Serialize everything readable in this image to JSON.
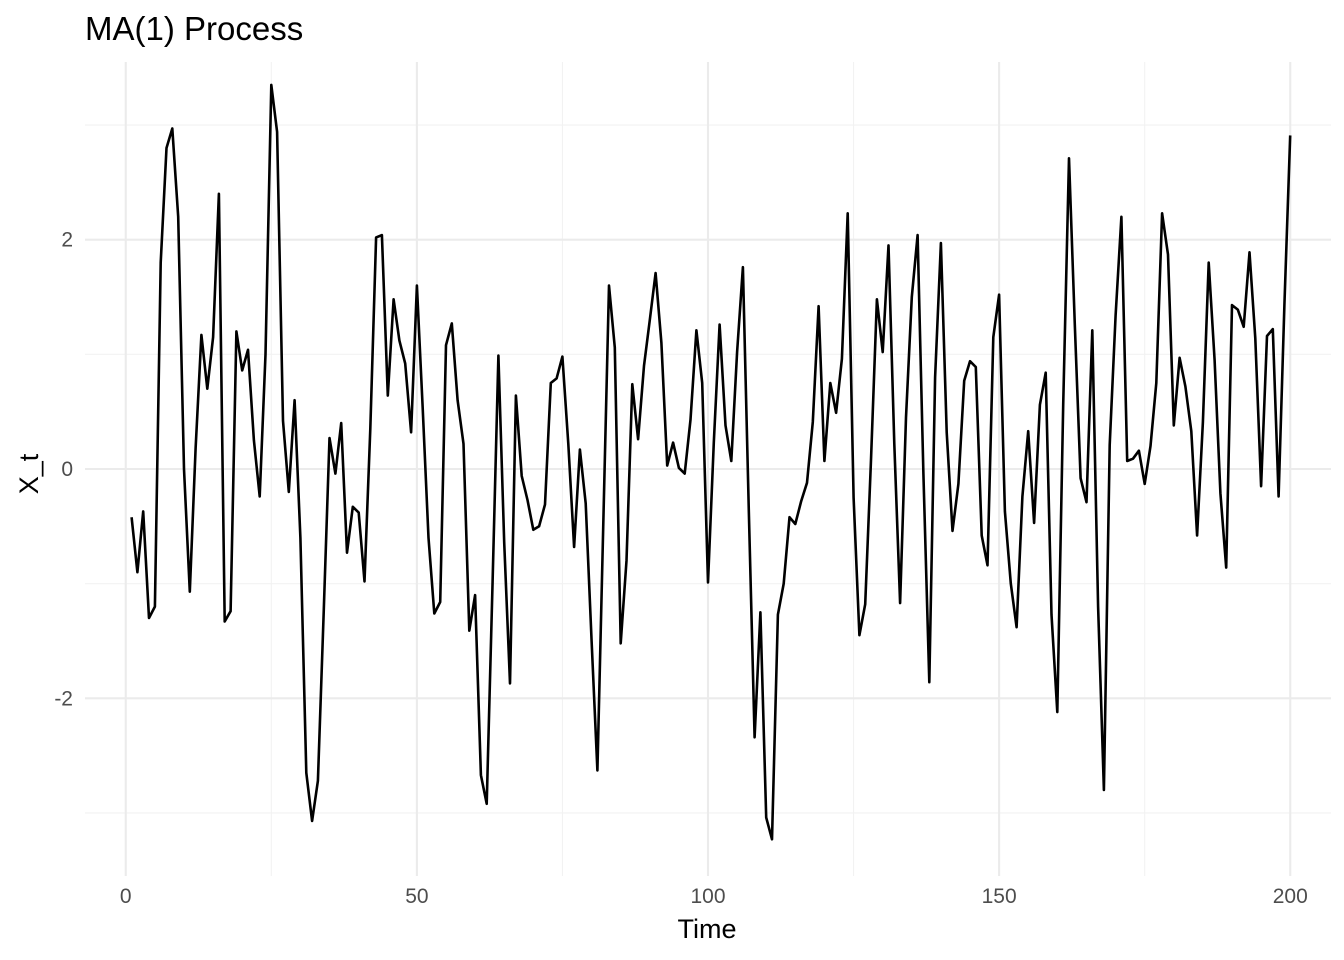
{
  "chart_data": {
    "type": "line",
    "title": "MA(1) Process",
    "xlabel": "Time",
    "ylabel": "X_t",
    "xlim": [
      -7,
      207
    ],
    "ylim": [
      -3.55,
      3.55
    ],
    "x_ticks": [
      0,
      50,
      100,
      150,
      200
    ],
    "y_ticks": [
      -2,
      0,
      2
    ],
    "x_tick_labels": [
      "0",
      "50",
      "100",
      "150",
      "200"
    ],
    "y_tick_labels": [
      "-2",
      "0",
      "2"
    ],
    "grid": true,
    "legend": "none",
    "colors": {
      "line": "#000000",
      "grid_major": "#ebebeb",
      "grid_minor": "#f2f2f2",
      "text": "#4d4d4d"
    },
    "series": [
      {
        "x_start": 1,
        "x_step": 1,
        "values": [
          -0.42,
          -0.9,
          -0.37,
          -1.3,
          -1.2,
          1.8,
          2.8,
          2.97,
          2.2,
          0.0,
          -1.07,
          0.18,
          1.17,
          0.7,
          1.15,
          2.4,
          -1.33,
          -1.24,
          1.2,
          0.86,
          1.04,
          0.25,
          -0.24,
          1.0,
          3.35,
          2.94,
          0.42,
          -0.2,
          0.6,
          -0.6,
          -2.65,
          -3.07,
          -2.72,
          -1.25,
          0.27,
          -0.04,
          0.4,
          -0.73,
          -0.33,
          -0.38,
          -0.98,
          0.35,
          2.02,
          2.04,
          0.64,
          1.48,
          1.12,
          0.92,
          0.32,
          1.6,
          0.53,
          -0.6,
          -1.26,
          -1.16,
          1.08,
          1.27,
          0.6,
          0.22,
          -1.41,
          -1.1,
          -2.67,
          -2.92,
          -0.98,
          0.99,
          -0.64,
          -1.87,
          0.64,
          -0.06,
          -0.27,
          -0.53,
          -0.5,
          -0.31,
          0.75,
          0.79,
          0.98,
          0.22,
          -0.68,
          0.17,
          -0.3,
          -1.5,
          -2.63,
          -0.51,
          1.6,
          1.06,
          -1.52,
          -0.8,
          0.74,
          0.26,
          0.9,
          1.3,
          1.71,
          1.1,
          0.03,
          0.23,
          0.01,
          -0.04,
          0.43,
          1.21,
          0.75,
          -0.99,
          0.23,
          1.26,
          0.38,
          0.07,
          1.02,
          1.76,
          -0.36,
          -2.34,
          -1.25,
          -3.04,
          -3.23,
          -1.27,
          -1.0,
          -0.42,
          -0.48,
          -0.28,
          -0.12,
          0.41,
          1.42,
          0.07,
          0.75,
          0.49,
          0.96,
          2.23,
          -0.25,
          -1.45,
          -1.18,
          0.08,
          1.48,
          1.02,
          1.95,
          0.22,
          -1.17,
          0.45,
          1.5,
          2.04,
          -0.04,
          -1.86,
          0.8,
          1.97,
          0.32,
          -0.54,
          -0.13,
          0.77,
          0.94,
          0.89,
          -0.58,
          -0.84,
          1.15,
          1.52,
          -0.37,
          -1.0,
          -1.38,
          -0.24,
          0.33,
          -0.47,
          0.56,
          0.84,
          -1.27,
          -2.12,
          0.56,
          2.71,
          1.26,
          -0.08,
          -0.29,
          1.21,
          -1.2,
          -2.8,
          0.21,
          1.34,
          2.2,
          0.07,
          0.09,
          0.16,
          -0.13,
          0.2,
          0.75,
          2.23,
          1.87,
          0.38,
          0.97,
          0.72,
          0.33,
          -0.58,
          0.41,
          1.8,
          0.95,
          -0.21,
          -0.86,
          1.43,
          1.39,
          1.24,
          1.89,
          1.14,
          -0.15,
          1.16,
          1.22,
          -0.24,
          1.43,
          2.91
        ]
      }
    ]
  }
}
